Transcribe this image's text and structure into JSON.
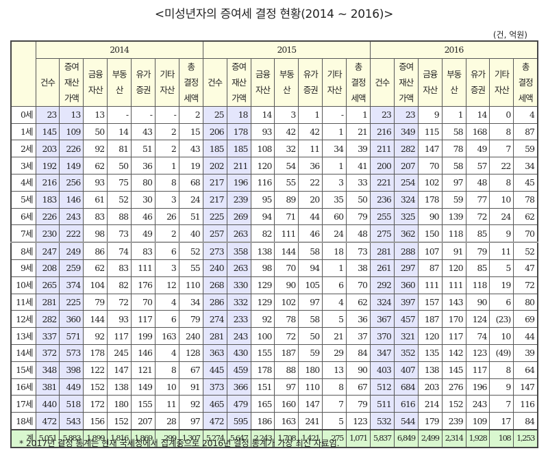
{
  "title": "<미성년자의 증여세 결정 현황(2014 ~ 2016)>",
  "unit": "(건, 억원)",
  "years": [
    "2014",
    "2015",
    "2016"
  ],
  "columns": [
    "건수",
    "증여\n재산\n가액",
    "금융\n자산",
    "부동\n산",
    "유가\n증권",
    "기타\n자산",
    "총\n결정\n세액"
  ],
  "rows": [
    {
      "age": "0세",
      "v": [
        [
          "23",
          "13",
          "13",
          "-",
          "-",
          "-",
          "2"
        ],
        [
          "25",
          "18",
          "14",
          "3",
          "1",
          "-",
          "1"
        ],
        [
          "23",
          "23",
          "9",
          "1",
          "14",
          "0",
          "4"
        ]
      ]
    },
    {
      "age": "1세",
      "v": [
        [
          "145",
          "109",
          "50",
          "14",
          "43",
          "2",
          "15"
        ],
        [
          "206",
          "178",
          "93",
          "42",
          "42",
          "1",
          "21"
        ],
        [
          "216",
          "349",
          "115",
          "58",
          "168",
          "8",
          "87"
        ]
      ]
    },
    {
      "age": "2세",
      "v": [
        [
          "203",
          "226",
          "92",
          "81",
          "51",
          "2",
          "43"
        ],
        [
          "185",
          "185",
          "108",
          "32",
          "11",
          "34",
          "39"
        ],
        [
          "211",
          "282",
          "147",
          "78",
          "49",
          "7",
          "59"
        ]
      ]
    },
    {
      "age": "3세",
      "v": [
        [
          "192",
          "149",
          "62",
          "50",
          "36",
          "1",
          "19"
        ],
        [
          "202",
          "211",
          "120",
          "54",
          "36",
          "1",
          "41"
        ],
        [
          "200",
          "207",
          "70",
          "58",
          "57",
          "22",
          "34"
        ]
      ]
    },
    {
      "age": "4세",
      "v": [
        [
          "216",
          "256",
          "93",
          "75",
          "80",
          "8",
          "68"
        ],
        [
          "217",
          "196",
          "116",
          "55",
          "22",
          "3",
          "33"
        ],
        [
          "221",
          "254",
          "102",
          "97",
          "48",
          "8",
          "45"
        ]
      ]
    },
    {
      "age": "5세",
      "v": [
        [
          "183",
          "146",
          "61",
          "52",
          "30",
          "3",
          "24"
        ],
        [
          "217",
          "239",
          "95",
          "89",
          "20",
          "35",
          "50"
        ],
        [
          "236",
          "324",
          "178",
          "59",
          "77",
          "10",
          "78"
        ]
      ]
    },
    {
      "age": "6세",
      "v": [
        [
          "226",
          "243",
          "83",
          "88",
          "46",
          "26",
          "51"
        ],
        [
          "225",
          "269",
          "94",
          "71",
          "44",
          "60",
          "79"
        ],
        [
          "255",
          "325",
          "90",
          "139",
          "72",
          "24",
          "62"
        ]
      ]
    },
    {
      "age": "7세",
      "v": [
        [
          "230",
          "222",
          "98",
          "73",
          "49",
          "2",
          "40"
        ],
        [
          "257",
          "263",
          "82",
          "111",
          "46",
          "24",
          "48"
        ],
        [
          "275",
          "362",
          "150",
          "118",
          "85",
          "9",
          "70"
        ]
      ]
    },
    {
      "age": "8세",
      "v": [
        [
          "247",
          "249",
          "86",
          "74",
          "83",
          "6",
          "52"
        ],
        [
          "273",
          "358",
          "138",
          "144",
          "58",
          "18",
          "73"
        ],
        [
          "281",
          "288",
          "107",
          "91",
          "79",
          "11",
          "52"
        ]
      ]
    },
    {
      "age": "9세",
      "v": [
        [
          "208",
          "259",
          "62",
          "83",
          "111",
          "3",
          "55"
        ],
        [
          "240",
          "263",
          "98",
          "70",
          "94",
          "1",
          "38"
        ],
        [
          "261",
          "297",
          "87",
          "120",
          "85",
          "5",
          "47"
        ]
      ]
    },
    {
      "age": "10세",
      "v": [
        [
          "265",
          "374",
          "104",
          "82",
          "176",
          "12",
          "110"
        ],
        [
          "268",
          "330",
          "129",
          "90",
          "105",
          "6",
          "70"
        ],
        [
          "292",
          "360",
          "111",
          "111",
          "118",
          "19",
          "72"
        ]
      ]
    },
    {
      "age": "11세",
      "v": [
        [
          "281",
          "225",
          "79",
          "72",
          "70",
          "4",
          "34"
        ],
        [
          "286",
          "332",
          "129",
          "102",
          "97",
          "4",
          "62"
        ],
        [
          "324",
          "397",
          "157",
          "143",
          "90",
          "6",
          "80"
        ]
      ]
    },
    {
      "age": "12세",
      "v": [
        [
          "282",
          "360",
          "144",
          "93",
          "117",
          "6",
          "79"
        ],
        [
          "274",
          "233",
          "92",
          "78",
          "58",
          "5",
          "36"
        ],
        [
          "367",
          "457",
          "187",
          "170",
          "124",
          "(23)",
          "69"
        ]
      ]
    },
    {
      "age": "13세",
      "v": [
        [
          "337",
          "571",
          "92",
          "117",
          "199",
          "163",
          "240"
        ],
        [
          "281",
          "243",
          "100",
          "72",
          "50",
          "21",
          "37"
        ],
        [
          "370",
          "321",
          "120",
          "117",
          "74",
          "10",
          "44"
        ]
      ]
    },
    {
      "age": "14세",
      "v": [
        [
          "372",
          "573",
          "178",
          "245",
          "146",
          "4",
          "128"
        ],
        [
          "363",
          "430",
          "155",
          "187",
          "59",
          "29",
          "84"
        ],
        [
          "347",
          "352",
          "135",
          "142",
          "123",
          "(49)",
          "39"
        ]
      ]
    },
    {
      "age": "15세",
      "v": [
        [
          "348",
          "398",
          "122",
          "147",
          "121",
          "8",
          "67"
        ],
        [
          "445",
          "459",
          "178",
          "88",
          "180",
          "13",
          "90"
        ],
        [
          "403",
          "407",
          "138",
          "145",
          "117",
          "8",
          "64"
        ]
      ]
    },
    {
      "age": "16세",
      "v": [
        [
          "381",
          "449",
          "152",
          "138",
          "149",
          "10",
          "91"
        ],
        [
          "373",
          "366",
          "151",
          "97",
          "110",
          "8",
          "67"
        ],
        [
          "512",
          "684",
          "203",
          "276",
          "196",
          "9",
          "147"
        ]
      ]
    },
    {
      "age": "17세",
      "v": [
        [
          "440",
          "518",
          "172",
          "180",
          "155",
          "11",
          "92"
        ],
        [
          "465",
          "479",
          "165",
          "160",
          "147",
          "7",
          "79"
        ],
        [
          "511",
          "616",
          "214",
          "152",
          "243",
          "7",
          "116"
        ]
      ]
    },
    {
      "age": "18세",
      "v": [
        [
          "472",
          "543",
          "156",
          "152",
          "207",
          "28",
          "97"
        ],
        [
          "472",
          "595",
          "186",
          "163",
          "241",
          "5",
          "123"
        ],
        [
          "532",
          "544",
          "179",
          "239",
          "109",
          "17",
          "84"
        ]
      ]
    }
  ],
  "total": {
    "age": "계",
    "v": [
      [
        "5,051",
        "5,883",
        "1,899",
        "1,816",
        "1,869",
        "299",
        "1,307"
      ],
      [
        "5,274",
        "5,647",
        "2,243",
        "1,708",
        "1,421",
        "275",
        "1,071"
      ],
      [
        "5,837",
        "6,849",
        "2,499",
        "2,314",
        "1,928",
        "108",
        "1,253"
      ]
    ]
  },
  "note": "* 2017년 결정 통계는 현재 국세청에서 집계중으로 2016년 결정 통계가 가장 최신 자료임."
}
